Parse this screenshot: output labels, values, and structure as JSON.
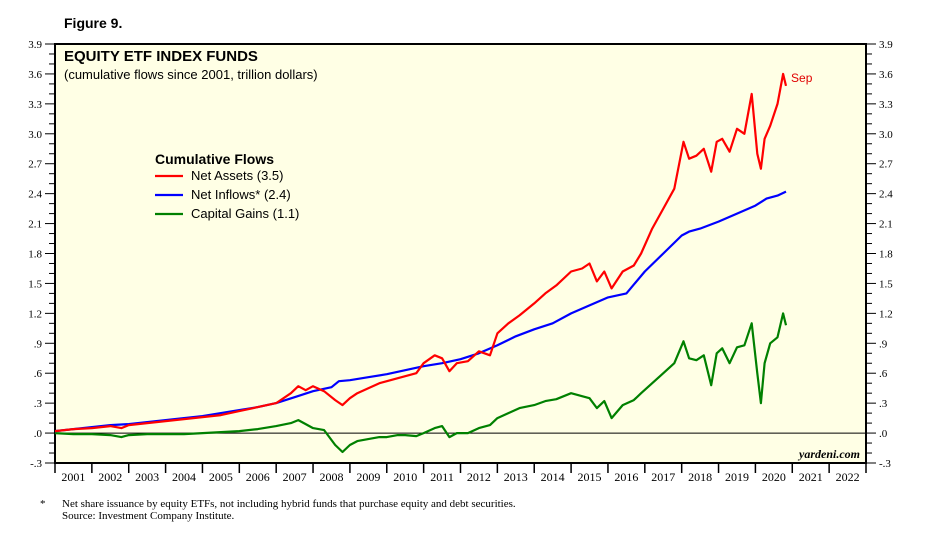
{
  "figure_label": "Figure 9.",
  "footnote": {
    "marker": "*",
    "text": "Net share issuance by equity ETFs, not including hybrid funds that purchase equity and debt securities.",
    "source": "Source: Investment Company Institute."
  },
  "chart_data": {
    "type": "line",
    "title": "EQUITY ETF INDEX FUNDS",
    "subtitle": "(cumulative flows since 2001, trillion dollars)",
    "xlabel": "",
    "ylabel": "",
    "xlim": [
      2001,
      2023
    ],
    "ylim": [
      -0.3,
      3.9
    ],
    "grid": false,
    "zero_line": true,
    "x_tick_labels": [
      "2001",
      "2002",
      "2003",
      "2004",
      "2005",
      "2006",
      "2007",
      "2008",
      "2009",
      "2010",
      "2011",
      "2012",
      "2013",
      "2014",
      "2015",
      "2016",
      "2017",
      "2018",
      "2019",
      "2020",
      "2021",
      "2022"
    ],
    "y_ticks": [
      3.9,
      3.6,
      3.3,
      3.0,
      2.7,
      2.4,
      2.1,
      1.8,
      1.5,
      1.2,
      0.9,
      0.6,
      0.3,
      0.0,
      -0.3
    ],
    "y_tick_labels": [
      "3.9",
      "3.6",
      "3.3",
      "3.0",
      "2.7",
      "2.4",
      "2.1",
      "1.8",
      "1.5",
      "1.2",
      ".9",
      ".6",
      ".3",
      ".0",
      "-.3"
    ],
    "legend": {
      "title": "Cumulative Flows",
      "position": "upper-left"
    },
    "annotations": [
      {
        "text": "Sep",
        "x": 2020.75,
        "y": 3.5,
        "color": "#e00000"
      }
    ],
    "credit": "yardeni.com",
    "series": [
      {
        "name": "Net Assets (3.5)",
        "color": "#ff0000",
        "x": [
          2001.0,
          2001.5,
          2002.0,
          2002.5,
          2002.8,
          2003.0,
          2003.5,
          2004.0,
          2004.5,
          2005.0,
          2005.5,
          2006.0,
          2006.5,
          2007.0,
          2007.4,
          2007.6,
          2007.8,
          2008.0,
          2008.3,
          2008.6,
          2008.8,
          2009.0,
          2009.2,
          2009.5,
          2009.8,
          2010.0,
          2010.3,
          2010.5,
          2010.8,
          2011.0,
          2011.3,
          2011.5,
          2011.7,
          2011.9,
          2012.2,
          2012.5,
          2012.8,
          2013.0,
          2013.3,
          2013.6,
          2014.0,
          2014.3,
          2014.6,
          2015.0,
          2015.3,
          2015.5,
          2015.7,
          2015.9,
          2016.1,
          2016.4,
          2016.7,
          2016.9,
          2017.2,
          2017.5,
          2017.8,
          2018.05,
          2018.2,
          2018.4,
          2018.6,
          2018.8,
          2018.95,
          2019.1,
          2019.3,
          2019.5,
          2019.7,
          2019.9,
          2020.05,
          2020.15,
          2020.25,
          2020.4,
          2020.6,
          2020.75,
          2020.83
        ],
        "values": [
          0.02,
          0.04,
          0.05,
          0.07,
          0.05,
          0.08,
          0.1,
          0.12,
          0.14,
          0.16,
          0.18,
          0.22,
          0.26,
          0.3,
          0.4,
          0.47,
          0.43,
          0.47,
          0.42,
          0.33,
          0.28,
          0.35,
          0.4,
          0.45,
          0.5,
          0.52,
          0.55,
          0.57,
          0.6,
          0.7,
          0.78,
          0.75,
          0.62,
          0.7,
          0.72,
          0.82,
          0.78,
          1.0,
          1.1,
          1.18,
          1.3,
          1.4,
          1.48,
          1.62,
          1.65,
          1.7,
          1.52,
          1.62,
          1.45,
          1.62,
          1.68,
          1.8,
          2.05,
          2.25,
          2.45,
          2.92,
          2.75,
          2.78,
          2.85,
          2.62,
          2.92,
          2.95,
          2.82,
          3.05,
          3.0,
          3.4,
          2.8,
          2.65,
          2.95,
          3.08,
          3.3,
          3.6,
          3.48
        ]
      },
      {
        "name": "Net Inflows* (2.4)",
        "color": "#0000ff",
        "x": [
          2001.0,
          2001.5,
          2002.0,
          2002.5,
          2003.0,
          2003.5,
          2004.0,
          2004.5,
          2005.0,
          2005.5,
          2006.0,
          2006.5,
          2007.0,
          2007.5,
          2008.0,
          2008.5,
          2008.7,
          2009.0,
          2009.5,
          2010.0,
          2010.5,
          2011.0,
          2011.5,
          2012.0,
          2012.5,
          2013.0,
          2013.5,
          2014.0,
          2014.5,
          2015.0,
          2015.5,
          2016.0,
          2016.5,
          2017.0,
          2017.5,
          2018.0,
          2018.2,
          2018.5,
          2019.0,
          2019.5,
          2020.0,
          2020.3,
          2020.6,
          2020.83
        ],
        "values": [
          0.02,
          0.04,
          0.06,
          0.08,
          0.09,
          0.11,
          0.13,
          0.15,
          0.17,
          0.2,
          0.23,
          0.26,
          0.3,
          0.36,
          0.42,
          0.46,
          0.52,
          0.53,
          0.56,
          0.59,
          0.63,
          0.67,
          0.7,
          0.74,
          0.8,
          0.88,
          0.97,
          1.04,
          1.1,
          1.2,
          1.28,
          1.36,
          1.4,
          1.62,
          1.8,
          1.98,
          2.02,
          2.05,
          2.12,
          2.2,
          2.28,
          2.35,
          2.38,
          2.42
        ]
      },
      {
        "name": "Capital Gains (1.1)",
        "color": "#008000",
        "x": [
          2001.0,
          2001.5,
          2002.0,
          2002.5,
          2002.8,
          2003.0,
          2003.5,
          2004.0,
          2004.5,
          2005.0,
          2005.5,
          2006.0,
          2006.5,
          2007.0,
          2007.4,
          2007.6,
          2007.8,
          2008.0,
          2008.3,
          2008.6,
          2008.8,
          2009.0,
          2009.2,
          2009.5,
          2009.8,
          2010.0,
          2010.3,
          2010.5,
          2010.8,
          2011.0,
          2011.3,
          2011.5,
          2011.7,
          2011.9,
          2012.2,
          2012.5,
          2012.8,
          2013.0,
          2013.3,
          2013.6,
          2014.0,
          2014.3,
          2014.6,
          2015.0,
          2015.3,
          2015.5,
          2015.7,
          2015.9,
          2016.1,
          2016.4,
          2016.7,
          2016.9,
          2017.2,
          2017.5,
          2017.8,
          2018.05,
          2018.2,
          2018.4,
          2018.6,
          2018.8,
          2018.95,
          2019.1,
          2019.3,
          2019.5,
          2019.7,
          2019.9,
          2020.05,
          2020.15,
          2020.25,
          2020.4,
          2020.6,
          2020.75,
          2020.83
        ],
        "values": [
          0.0,
          -0.01,
          -0.01,
          -0.02,
          -0.04,
          -0.02,
          -0.01,
          -0.01,
          -0.01,
          0.0,
          0.01,
          0.02,
          0.04,
          0.07,
          0.1,
          0.13,
          0.09,
          0.05,
          0.03,
          -0.12,
          -0.19,
          -0.12,
          -0.08,
          -0.06,
          -0.04,
          -0.04,
          -0.02,
          -0.02,
          -0.03,
          0.0,
          0.05,
          0.07,
          -0.04,
          0.0,
          0.0,
          0.05,
          0.08,
          0.15,
          0.2,
          0.25,
          0.28,
          0.32,
          0.34,
          0.4,
          0.37,
          0.35,
          0.25,
          0.32,
          0.15,
          0.28,
          0.33,
          0.4,
          0.5,
          0.6,
          0.7,
          0.92,
          0.75,
          0.73,
          0.78,
          0.48,
          0.8,
          0.85,
          0.7,
          0.86,
          0.88,
          1.1,
          0.6,
          0.3,
          0.7,
          0.9,
          0.96,
          1.2,
          1.08
        ]
      }
    ]
  }
}
